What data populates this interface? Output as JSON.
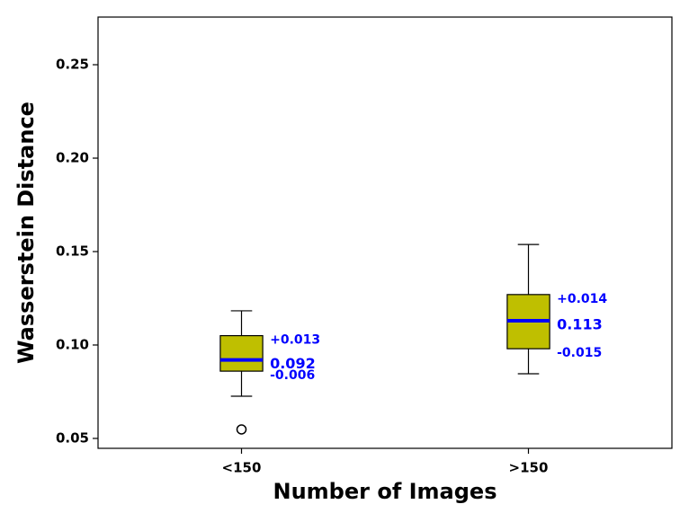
{
  "chart_data": {
    "type": "box",
    "xlabel": "Number of Images",
    "ylabel": "Wasserstein Distance",
    "categories": [
      "<150",
      ">150"
    ],
    "ylim": [
      0.0447,
      0.2755
    ],
    "yticks": [
      0.05,
      {
        "value": 0.1,
        "label": "0.10"
      },
      0.15,
      {
        "value": 0.2,
        "label": "0.20"
      },
      0.25
    ],
    "box_color": "#bfbf00",
    "median_color": "#0000ff",
    "label_color": "#0000ff",
    "boxes": [
      {
        "whislo": 0.0726,
        "q1": 0.086,
        "med": 0.092,
        "q3": 0.105,
        "whishi": 0.1183,
        "fliers": [
          0.0548
        ],
        "err_up": 0.013,
        "err_down": -0.006,
        "value_labels": {
          "err_up": "+0.013",
          "err_down": "-0.006"
        }
      },
      {
        "whislo": 0.0846,
        "q1": 0.098,
        "med": 0.113,
        "q3": 0.127,
        "whishi": 0.1538,
        "fliers": [],
        "err_up": 0.014,
        "err_down": -0.015,
        "value_labels": {
          "err_up": "+0.014",
          "err_down": "-0.015"
        }
      }
    ]
  }
}
